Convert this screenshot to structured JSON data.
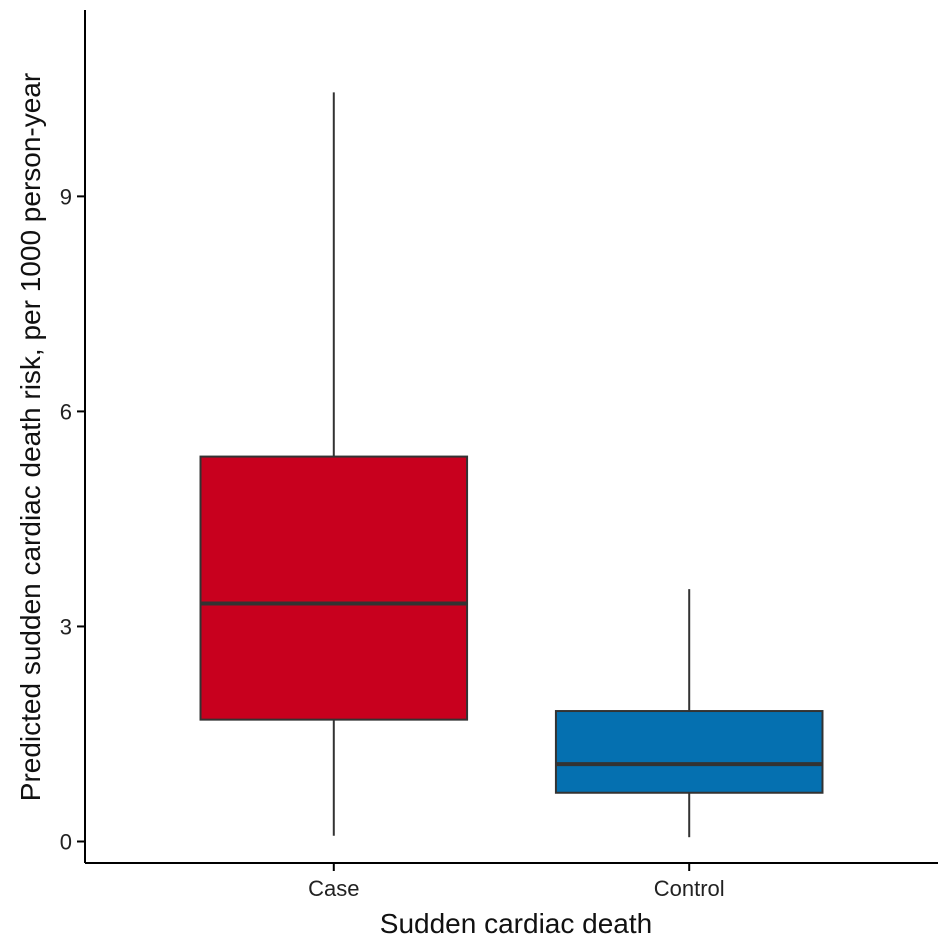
{
  "chart_data": {
    "type": "boxplot",
    "xlabel": "Sudden cardiac death",
    "ylabel": "Predicted sudden cardiac death risk, per 1000 person-year",
    "ylim": [
      -0.3,
      11.6
    ],
    "yticks": [
      0,
      3,
      6,
      9
    ],
    "grid": false,
    "legend": "none",
    "categories": [
      "Case",
      "Control"
    ],
    "boxes": [
      {
        "category": "Case",
        "color": "#C8001E",
        "whisker_low": 0.08,
        "q1": 1.7,
        "median": 3.32,
        "q3": 5.37,
        "whisker_high": 10.45
      },
      {
        "category": "Control",
        "color": "#0570B0",
        "whisker_low": 0.06,
        "q1": 0.68,
        "median": 1.08,
        "q3": 1.82,
        "whisker_high": 3.52
      }
    ]
  }
}
